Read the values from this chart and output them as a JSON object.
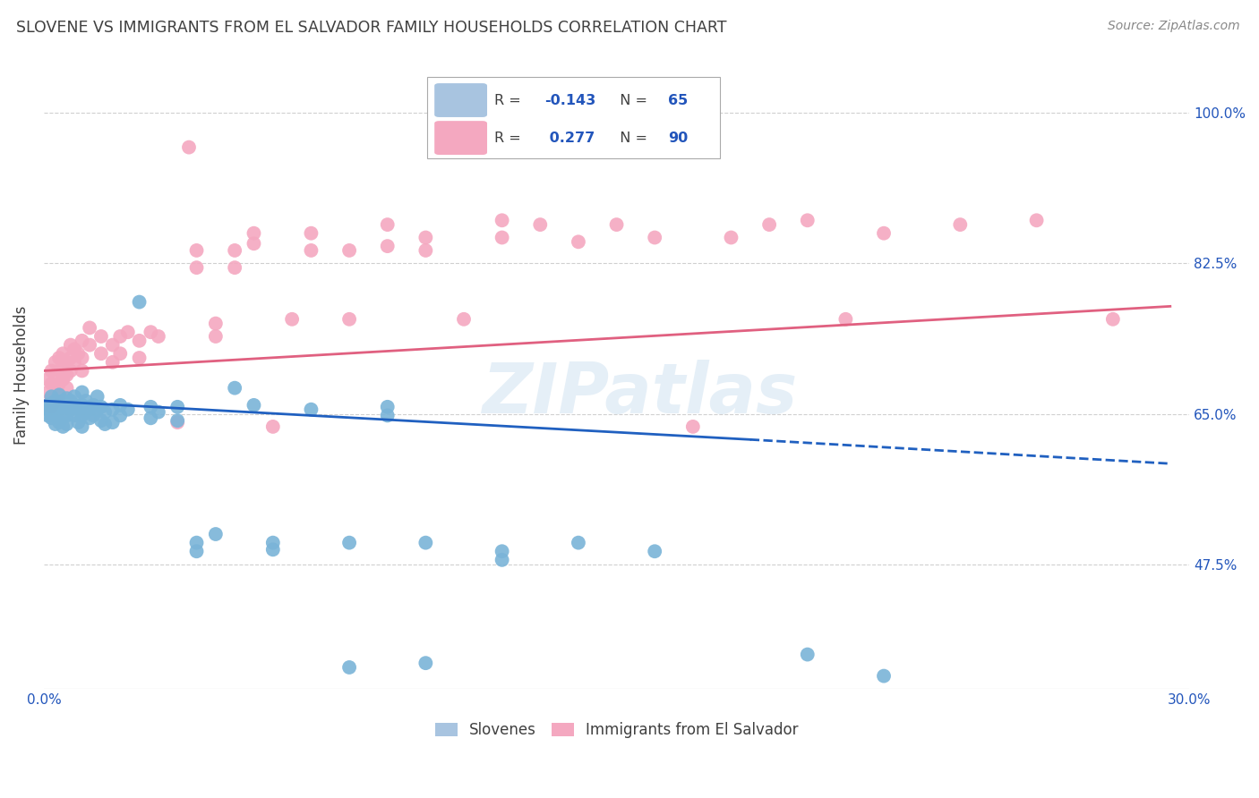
{
  "title": "SLOVENE VS IMMIGRANTS FROM EL SALVADOR FAMILY HOUSEHOLDS CORRELATION CHART",
  "source": "Source: ZipAtlas.com",
  "ylabel": "Family Households",
  "ytick_labels": [
    "100.0%",
    "82.5%",
    "65.0%",
    "47.5%"
  ],
  "ytick_values": [
    1.0,
    0.825,
    0.65,
    0.475
  ],
  "xlim": [
    0.0,
    0.3
  ],
  "ylim": [
    0.33,
    1.06
  ],
  "slovene_color": "#7ab4d8",
  "salvador_color": "#f4a8c0",
  "slovene_scatter": [
    [
      0.001,
      0.66
    ],
    [
      0.001,
      0.648
    ],
    [
      0.001,
      0.655
    ],
    [
      0.002,
      0.662
    ],
    [
      0.002,
      0.65
    ],
    [
      0.002,
      0.67
    ],
    [
      0.002,
      0.645
    ],
    [
      0.003,
      0.658
    ],
    [
      0.003,
      0.665
    ],
    [
      0.003,
      0.648
    ],
    [
      0.003,
      0.638
    ],
    [
      0.004,
      0.66
    ],
    [
      0.004,
      0.655
    ],
    [
      0.004,
      0.672
    ],
    [
      0.004,
      0.64
    ],
    [
      0.005,
      0.665
    ],
    [
      0.005,
      0.658
    ],
    [
      0.005,
      0.648
    ],
    [
      0.005,
      0.635
    ],
    [
      0.006,
      0.668
    ],
    [
      0.006,
      0.658
    ],
    [
      0.006,
      0.648
    ],
    [
      0.006,
      0.638
    ],
    [
      0.007,
      0.665
    ],
    [
      0.007,
      0.655
    ],
    [
      0.008,
      0.67
    ],
    [
      0.008,
      0.66
    ],
    [
      0.008,
      0.648
    ],
    [
      0.009,
      0.655
    ],
    [
      0.009,
      0.64
    ],
    [
      0.01,
      0.675
    ],
    [
      0.01,
      0.66
    ],
    [
      0.01,
      0.648
    ],
    [
      0.01,
      0.635
    ],
    [
      0.011,
      0.665
    ],
    [
      0.011,
      0.652
    ],
    [
      0.012,
      0.658
    ],
    [
      0.012,
      0.645
    ],
    [
      0.013,
      0.66
    ],
    [
      0.013,
      0.648
    ],
    [
      0.014,
      0.67
    ],
    [
      0.014,
      0.655
    ],
    [
      0.015,
      0.658
    ],
    [
      0.015,
      0.642
    ],
    [
      0.016,
      0.652
    ],
    [
      0.016,
      0.638
    ],
    [
      0.018,
      0.655
    ],
    [
      0.018,
      0.64
    ],
    [
      0.02,
      0.66
    ],
    [
      0.02,
      0.648
    ],
    [
      0.022,
      0.655
    ],
    [
      0.025,
      0.78
    ],
    [
      0.028,
      0.658
    ],
    [
      0.028,
      0.645
    ],
    [
      0.03,
      0.652
    ],
    [
      0.035,
      0.658
    ],
    [
      0.035,
      0.642
    ],
    [
      0.04,
      0.5
    ],
    [
      0.04,
      0.49
    ],
    [
      0.045,
      0.51
    ],
    [
      0.05,
      0.68
    ],
    [
      0.055,
      0.66
    ],
    [
      0.06,
      0.5
    ],
    [
      0.06,
      0.492
    ],
    [
      0.07,
      0.655
    ],
    [
      0.08,
      0.5
    ],
    [
      0.09,
      0.658
    ],
    [
      0.09,
      0.648
    ],
    [
      0.1,
      0.5
    ],
    [
      0.12,
      0.49
    ],
    [
      0.12,
      0.48
    ],
    [
      0.14,
      0.5
    ],
    [
      0.16,
      0.49
    ],
    [
      0.2,
      0.37
    ],
    [
      0.22,
      0.345
    ],
    [
      0.1,
      0.36
    ],
    [
      0.08,
      0.355
    ]
  ],
  "salvador_scatter": [
    [
      0.001,
      0.69
    ],
    [
      0.001,
      0.675
    ],
    [
      0.001,
      0.66
    ],
    [
      0.002,
      0.7
    ],
    [
      0.002,
      0.685
    ],
    [
      0.002,
      0.67
    ],
    [
      0.002,
      0.658
    ],
    [
      0.003,
      0.71
    ],
    [
      0.003,
      0.695
    ],
    [
      0.003,
      0.68
    ],
    [
      0.003,
      0.665
    ],
    [
      0.004,
      0.715
    ],
    [
      0.004,
      0.7
    ],
    [
      0.004,
      0.685
    ],
    [
      0.004,
      0.67
    ],
    [
      0.005,
      0.72
    ],
    [
      0.005,
      0.705
    ],
    [
      0.005,
      0.69
    ],
    [
      0.006,
      0.71
    ],
    [
      0.006,
      0.695
    ],
    [
      0.006,
      0.68
    ],
    [
      0.007,
      0.73
    ],
    [
      0.007,
      0.715
    ],
    [
      0.007,
      0.7
    ],
    [
      0.008,
      0.725
    ],
    [
      0.008,
      0.71
    ],
    [
      0.009,
      0.72
    ],
    [
      0.01,
      0.735
    ],
    [
      0.01,
      0.715
    ],
    [
      0.01,
      0.7
    ],
    [
      0.012,
      0.75
    ],
    [
      0.012,
      0.73
    ],
    [
      0.015,
      0.74
    ],
    [
      0.015,
      0.72
    ],
    [
      0.018,
      0.73
    ],
    [
      0.018,
      0.71
    ],
    [
      0.02,
      0.74
    ],
    [
      0.02,
      0.72
    ],
    [
      0.022,
      0.745
    ],
    [
      0.025,
      0.735
    ],
    [
      0.025,
      0.715
    ],
    [
      0.028,
      0.745
    ],
    [
      0.03,
      0.74
    ],
    [
      0.035,
      0.64
    ],
    [
      0.038,
      0.96
    ],
    [
      0.04,
      0.84
    ],
    [
      0.04,
      0.82
    ],
    [
      0.045,
      0.755
    ],
    [
      0.045,
      0.74
    ],
    [
      0.05,
      0.84
    ],
    [
      0.05,
      0.82
    ],
    [
      0.055,
      0.86
    ],
    [
      0.055,
      0.848
    ],
    [
      0.06,
      0.635
    ],
    [
      0.065,
      0.76
    ],
    [
      0.07,
      0.86
    ],
    [
      0.07,
      0.84
    ],
    [
      0.08,
      0.84
    ],
    [
      0.08,
      0.76
    ],
    [
      0.09,
      0.87
    ],
    [
      0.09,
      0.845
    ],
    [
      0.1,
      0.855
    ],
    [
      0.1,
      0.84
    ],
    [
      0.11,
      0.76
    ],
    [
      0.12,
      0.875
    ],
    [
      0.12,
      0.855
    ],
    [
      0.13,
      0.87
    ],
    [
      0.14,
      0.85
    ],
    [
      0.15,
      0.87
    ],
    [
      0.16,
      0.855
    ],
    [
      0.17,
      0.635
    ],
    [
      0.18,
      0.855
    ],
    [
      0.19,
      0.87
    ],
    [
      0.2,
      0.875
    ],
    [
      0.21,
      0.76
    ],
    [
      0.22,
      0.86
    ],
    [
      0.24,
      0.87
    ],
    [
      0.26,
      0.875
    ],
    [
      0.28,
      0.76
    ]
  ],
  "slovene_line_solid": [
    [
      0.0,
      0.665
    ],
    [
      0.185,
      0.62
    ]
  ],
  "slovene_line_dashed": [
    [
      0.185,
      0.62
    ],
    [
      0.295,
      0.592
    ]
  ],
  "salvador_line": [
    [
      0.0,
      0.7
    ],
    [
      0.295,
      0.775
    ]
  ],
  "watermark": "ZIPatlas",
  "background_color": "#ffffff",
  "grid_color": "#d0d0d0",
  "title_color": "#404040",
  "source_color": "#888888",
  "legend_box_color": "#aaaaaa",
  "legend_R_color": "#404040",
  "legend_val_color": "#2255bb",
  "axis_tick_color": "#2255bb"
}
